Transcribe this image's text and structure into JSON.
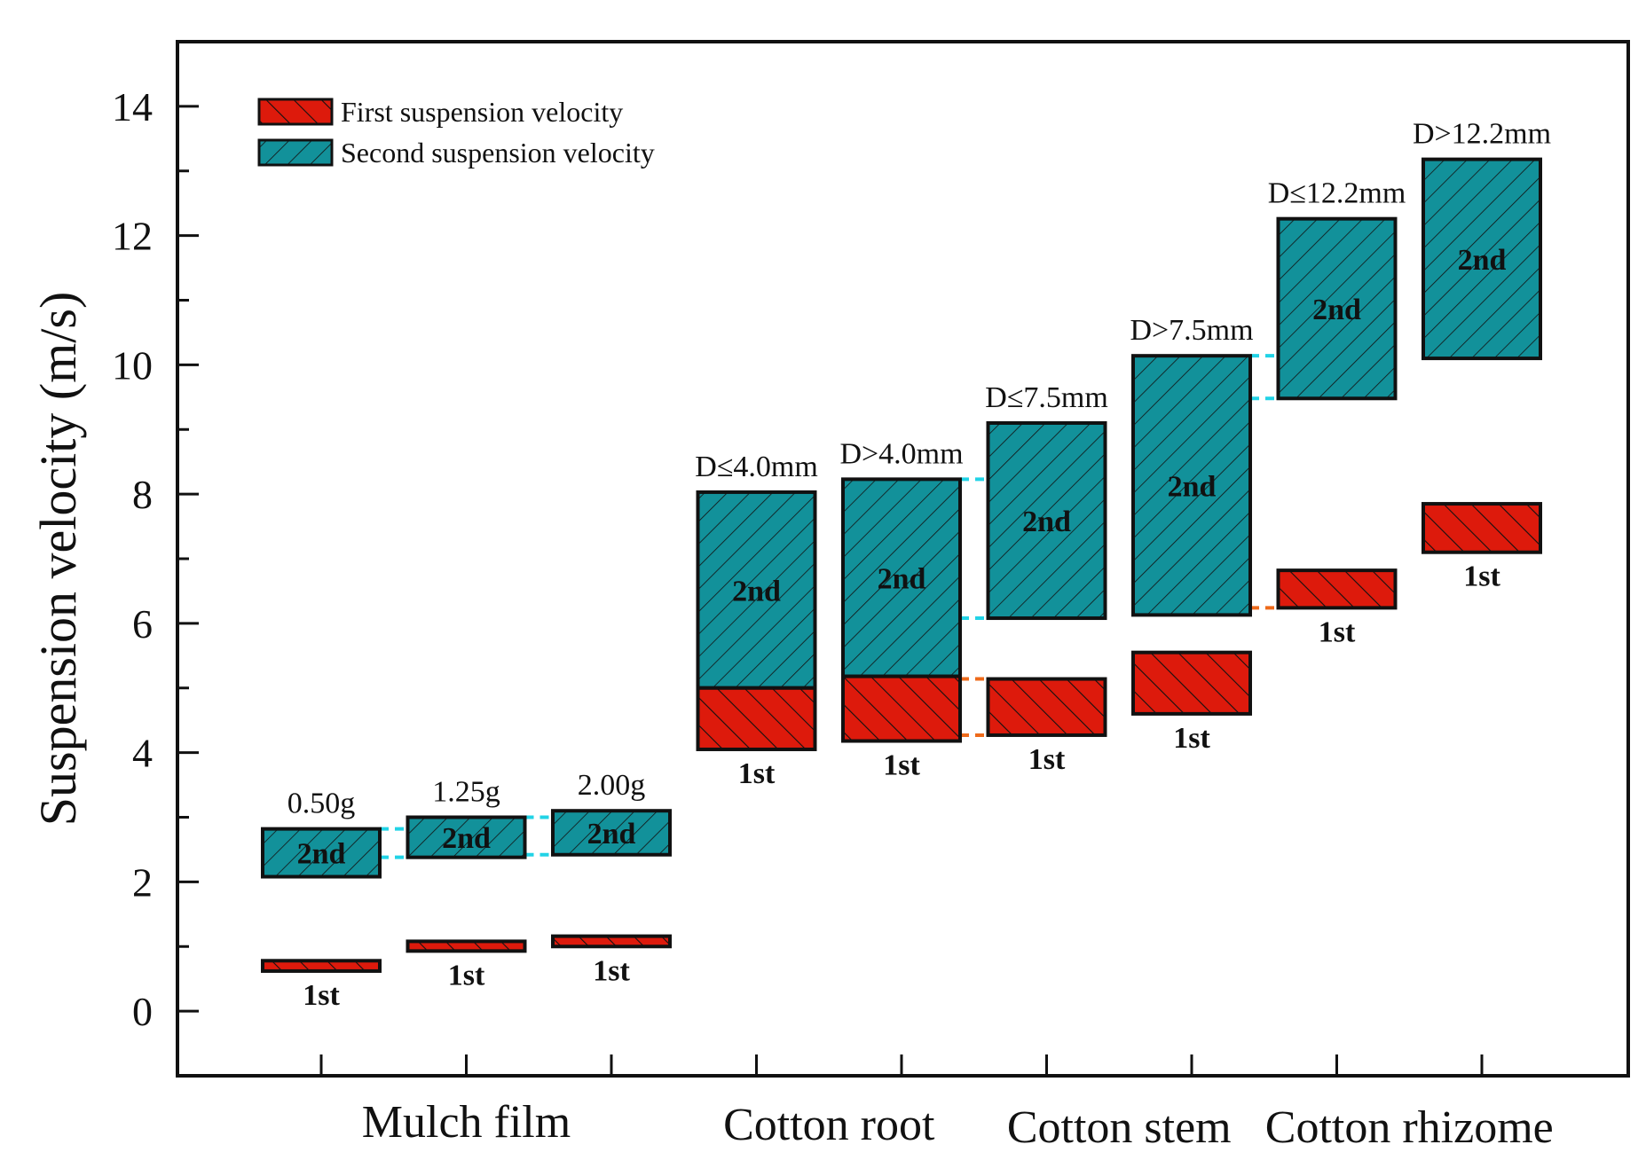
{
  "chart_data": {
    "type": "floating-bar",
    "ylabel": "Suspension velocity (m/s)",
    "ylim": [
      -1,
      15
    ],
    "yticks": [
      0,
      2,
      4,
      6,
      8,
      10,
      12,
      14
    ],
    "legend": {
      "placement": "top-left",
      "entries": [
        "First suspension velocity",
        "Second suspension velocity"
      ]
    },
    "colors": {
      "first": "#dd1a0c",
      "second": "#12919a",
      "cyan_link": "#22d3e6",
      "orange_link": "#ee6a1a"
    },
    "series_tags": {
      "first": "1st",
      "second": "2nd"
    },
    "groups": [
      {
        "name": "Mulch film",
        "items": [
          1,
          2,
          3
        ]
      },
      {
        "name": "Cotton root",
        "items": [
          4,
          5
        ]
      },
      {
        "name": "Cotton stem",
        "items": [
          6,
          7
        ]
      },
      {
        "name": "Cotton rhizome",
        "items": [
          8,
          9
        ]
      }
    ],
    "items": [
      {
        "x": 1,
        "label": "0.50g",
        "first": [
          0.62,
          0.78
        ],
        "second": [
          2.08,
          2.82
        ]
      },
      {
        "x": 2,
        "label": "1.25g",
        "first": [
          0.93,
          1.08
        ],
        "second": [
          2.38,
          3.0
        ]
      },
      {
        "x": 3,
        "label": "2.00g",
        "first": [
          1.0,
          1.16
        ],
        "second": [
          2.42,
          3.1
        ]
      },
      {
        "x": 4,
        "label": "D≤4.0mm",
        "first": [
          4.05,
          5.0
        ],
        "second": [
          5.0,
          8.03
        ]
      },
      {
        "x": 5,
        "label": "D>4.0mm",
        "first": [
          4.18,
          5.18
        ],
        "second": [
          5.18,
          8.23
        ]
      },
      {
        "x": 6,
        "label": "D≤7.5mm",
        "first": [
          4.27,
          5.14
        ],
        "second": [
          6.08,
          9.1
        ]
      },
      {
        "x": 7,
        "label": "D>7.5mm",
        "first": [
          4.6,
          5.55
        ],
        "second": [
          6.13,
          10.14
        ]
      },
      {
        "x": 8,
        "label": "D≤12.2mm",
        "first": [
          6.24,
          6.82
        ],
        "second": [
          9.48,
          12.26
        ]
      },
      {
        "x": 9,
        "label": "D>12.2mm",
        "first": [
          7.1,
          7.85
        ],
        "second": [
          10.1,
          13.18
        ]
      }
    ],
    "links": [
      {
        "from": 1,
        "to": 2,
        "values": [
          2.38,
          2.82
        ],
        "color": "cyan_link"
      },
      {
        "from": 2,
        "to": 3,
        "values": [
          2.42,
          3.0
        ],
        "color": "cyan_link"
      },
      {
        "from": 5,
        "to": 6,
        "values": [
          6.08,
          8.23
        ],
        "color": "cyan_link"
      },
      {
        "from": 5,
        "to": 6,
        "values": [
          4.27,
          5.14
        ],
        "color": "orange_link"
      },
      {
        "from": 7,
        "to": 8,
        "values": [
          9.48,
          10.14
        ],
        "color": "cyan_link"
      },
      {
        "from": 7,
        "to": 8,
        "values": [
          6.24
        ],
        "color": "orange_link"
      }
    ]
  }
}
